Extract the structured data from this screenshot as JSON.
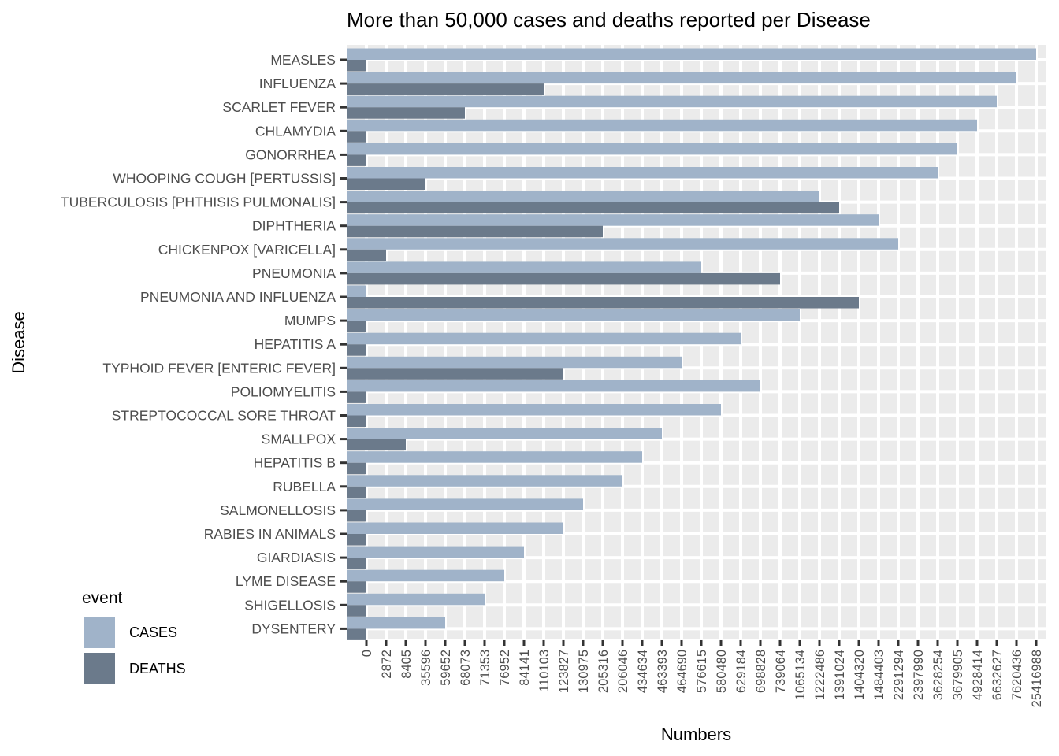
{
  "chart_data": {
    "type": "bar",
    "orientation": "horizontal",
    "title": "More than 50,000 cases and deaths reported per Disease",
    "xlabel": "Numbers",
    "ylabel": "Disease",
    "scale": "categorical-rank",
    "grid": true,
    "legend_position": "bottom-left",
    "legend_title": "event",
    "colors": {
      "CASES": "#a0b3c9",
      "DEATHS": "#6b7a8b",
      "panel": "#ebebeb",
      "grid": "#ffffff"
    },
    "x_ticks": [
      "0",
      "2872",
      "8405",
      "35596",
      "59652",
      "68073",
      "71353",
      "76952",
      "84141",
      "110103",
      "123827",
      "130975",
      "205316",
      "206046",
      "434634",
      "463393",
      "464690",
      "576615",
      "580480",
      "629184",
      "698828",
      "739064",
      "1065134",
      "1222486",
      "1391024",
      "1404320",
      "1484403",
      "2291294",
      "2397990",
      "3628254",
      "3679905",
      "4928414",
      "6632627",
      "7620436",
      "25416988"
    ],
    "categories": [
      "MEASLES",
      "INFLUENZA",
      "SCARLET FEVER",
      "CHLAMYDIA",
      "GONORRHEA",
      "WHOOPING COUGH [PERTUSSIS]",
      "TUBERCULOSIS [PHTHISIS PULMONALIS]",
      "DIPHTHERIA",
      "CHICKENPOX [VARICELLA]",
      "PNEUMONIA",
      "PNEUMONIA AND INFLUENZA",
      "MUMPS",
      "HEPATITIS A",
      "TYPHOID FEVER [ENTERIC FEVER]",
      "POLIOMYELITIS",
      "STREPTOCOCCAL SORE THROAT",
      "SMALLPOX",
      "HEPATITIS B",
      "RUBELLA",
      "SALMONELLOSIS",
      "RABIES IN ANIMALS",
      "GIARDIASIS",
      "LYME DISEASE",
      "SHIGELLOSIS",
      "DYSENTERY"
    ],
    "series": [
      {
        "name": "CASES",
        "values": [
          "25416988",
          "7620436",
          "6632627",
          "4928414",
          "3679905",
          "3628254",
          "1222486",
          "1484403",
          "2291294",
          "576615",
          "0",
          "1065134",
          "629184",
          "464690",
          "698828",
          "580480",
          "463393",
          "434634",
          "206046",
          "130975",
          "123827",
          "84141",
          "76952",
          "71353",
          "59652"
        ]
      },
      {
        "name": "DEATHS",
        "values": [
          "0",
          "110103",
          "68073",
          "0",
          "0",
          "35596",
          "1391024",
          "205316",
          "2872",
          "739064",
          "1404320",
          "0",
          "0",
          "123827",
          "0",
          "0",
          "8405",
          "0",
          "0",
          "0",
          "0",
          "0",
          "0",
          "0",
          "0"
        ]
      }
    ]
  }
}
